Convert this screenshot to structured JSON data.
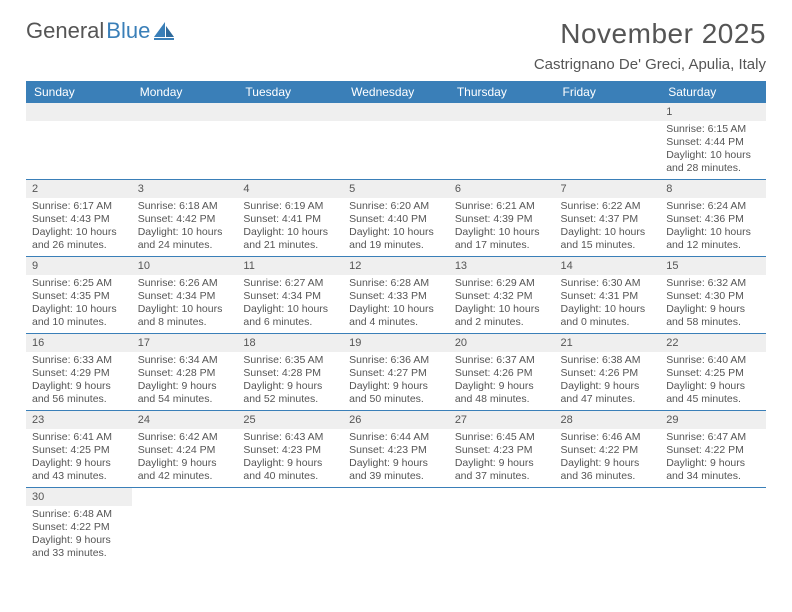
{
  "logo": {
    "part1": "General",
    "part2": "Blue"
  },
  "title": "November 2025",
  "location": "Castrignano De' Greci, Apulia, Italy",
  "colors": {
    "header_bg": "#3a7fb8",
    "header_text": "#ffffff",
    "daynum_bg": "#efefef",
    "text": "#555555",
    "cell_border": "#3a7fb8",
    "page_bg": "#ffffff"
  },
  "daysOfWeek": [
    "Sunday",
    "Monday",
    "Tuesday",
    "Wednesday",
    "Thursday",
    "Friday",
    "Saturday"
  ],
  "startOffset": 6,
  "daysInMonth": 30,
  "entries": {
    "1": {
      "sunrise": "6:15 AM",
      "sunset": "4:44 PM",
      "daylight": "10 hours and 28 minutes."
    },
    "2": {
      "sunrise": "6:17 AM",
      "sunset": "4:43 PM",
      "daylight": "10 hours and 26 minutes."
    },
    "3": {
      "sunrise": "6:18 AM",
      "sunset": "4:42 PM",
      "daylight": "10 hours and 24 minutes."
    },
    "4": {
      "sunrise": "6:19 AM",
      "sunset": "4:41 PM",
      "daylight": "10 hours and 21 minutes."
    },
    "5": {
      "sunrise": "6:20 AM",
      "sunset": "4:40 PM",
      "daylight": "10 hours and 19 minutes."
    },
    "6": {
      "sunrise": "6:21 AM",
      "sunset": "4:39 PM",
      "daylight": "10 hours and 17 minutes."
    },
    "7": {
      "sunrise": "6:22 AM",
      "sunset": "4:37 PM",
      "daylight": "10 hours and 15 minutes."
    },
    "8": {
      "sunrise": "6:24 AM",
      "sunset": "4:36 PM",
      "daylight": "10 hours and 12 minutes."
    },
    "9": {
      "sunrise": "6:25 AM",
      "sunset": "4:35 PM",
      "daylight": "10 hours and 10 minutes."
    },
    "10": {
      "sunrise": "6:26 AM",
      "sunset": "4:34 PM",
      "daylight": "10 hours and 8 minutes."
    },
    "11": {
      "sunrise": "6:27 AM",
      "sunset": "4:34 PM",
      "daylight": "10 hours and 6 minutes."
    },
    "12": {
      "sunrise": "6:28 AM",
      "sunset": "4:33 PM",
      "daylight": "10 hours and 4 minutes."
    },
    "13": {
      "sunrise": "6:29 AM",
      "sunset": "4:32 PM",
      "daylight": "10 hours and 2 minutes."
    },
    "14": {
      "sunrise": "6:30 AM",
      "sunset": "4:31 PM",
      "daylight": "10 hours and 0 minutes."
    },
    "15": {
      "sunrise": "6:32 AM",
      "sunset": "4:30 PM",
      "daylight": "9 hours and 58 minutes."
    },
    "16": {
      "sunrise": "6:33 AM",
      "sunset": "4:29 PM",
      "daylight": "9 hours and 56 minutes."
    },
    "17": {
      "sunrise": "6:34 AM",
      "sunset": "4:28 PM",
      "daylight": "9 hours and 54 minutes."
    },
    "18": {
      "sunrise": "6:35 AM",
      "sunset": "4:28 PM",
      "daylight": "9 hours and 52 minutes."
    },
    "19": {
      "sunrise": "6:36 AM",
      "sunset": "4:27 PM",
      "daylight": "9 hours and 50 minutes."
    },
    "20": {
      "sunrise": "6:37 AM",
      "sunset": "4:26 PM",
      "daylight": "9 hours and 48 minutes."
    },
    "21": {
      "sunrise": "6:38 AM",
      "sunset": "4:26 PM",
      "daylight": "9 hours and 47 minutes."
    },
    "22": {
      "sunrise": "6:40 AM",
      "sunset": "4:25 PM",
      "daylight": "9 hours and 45 minutes."
    },
    "23": {
      "sunrise": "6:41 AM",
      "sunset": "4:25 PM",
      "daylight": "9 hours and 43 minutes."
    },
    "24": {
      "sunrise": "6:42 AM",
      "sunset": "4:24 PM",
      "daylight": "9 hours and 42 minutes."
    },
    "25": {
      "sunrise": "6:43 AM",
      "sunset": "4:23 PM",
      "daylight": "9 hours and 40 minutes."
    },
    "26": {
      "sunrise": "6:44 AM",
      "sunset": "4:23 PM",
      "daylight": "9 hours and 39 minutes."
    },
    "27": {
      "sunrise": "6:45 AM",
      "sunset": "4:23 PM",
      "daylight": "9 hours and 37 minutes."
    },
    "28": {
      "sunrise": "6:46 AM",
      "sunset": "4:22 PM",
      "daylight": "9 hours and 36 minutes."
    },
    "29": {
      "sunrise": "6:47 AM",
      "sunset": "4:22 PM",
      "daylight": "9 hours and 34 minutes."
    },
    "30": {
      "sunrise": "6:48 AM",
      "sunset": "4:22 PM",
      "daylight": "9 hours and 33 minutes."
    }
  },
  "labels": {
    "sunrise": "Sunrise:",
    "sunset": "Sunset:",
    "daylight": "Daylight:"
  }
}
